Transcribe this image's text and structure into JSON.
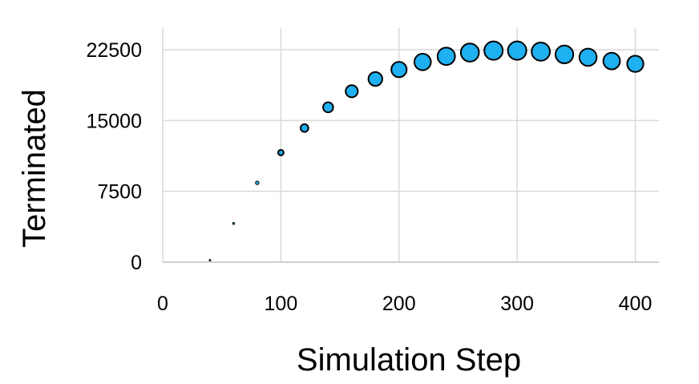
{
  "chart_data": {
    "type": "scatter",
    "title": "",
    "xlabel": "Simulation Step",
    "ylabel": "Terminated",
    "xlim": [
      0,
      420
    ],
    "ylim": [
      0,
      22500
    ],
    "x_ticks": [
      0,
      100,
      200,
      300,
      400
    ],
    "y_ticks": [
      0,
      7500,
      15000,
      22500
    ],
    "x_tick_labels": [
      "0",
      "100",
      "200",
      "300",
      "400"
    ],
    "y_tick_labels": [
      "0",
      "7500",
      "15000",
      "22500"
    ],
    "grid": true,
    "legend": "none",
    "marker_color": "#1eb0f0",
    "marker_edge_color": "#000000",
    "marker_size_encodes": "y value",
    "series": [
      {
        "x": [
          40,
          60,
          80,
          100,
          120,
          140,
          160,
          180,
          200,
          220,
          240,
          260,
          280,
          300,
          320,
          340,
          360,
          380,
          400
        ],
        "y": [
          200,
          4100,
          8400,
          11600,
          14200,
          16400,
          18100,
          19400,
          20400,
          21200,
          21800,
          22200,
          22400,
          22400,
          22300,
          22000,
          21700,
          21300,
          21000
        ]
      }
    ]
  }
}
